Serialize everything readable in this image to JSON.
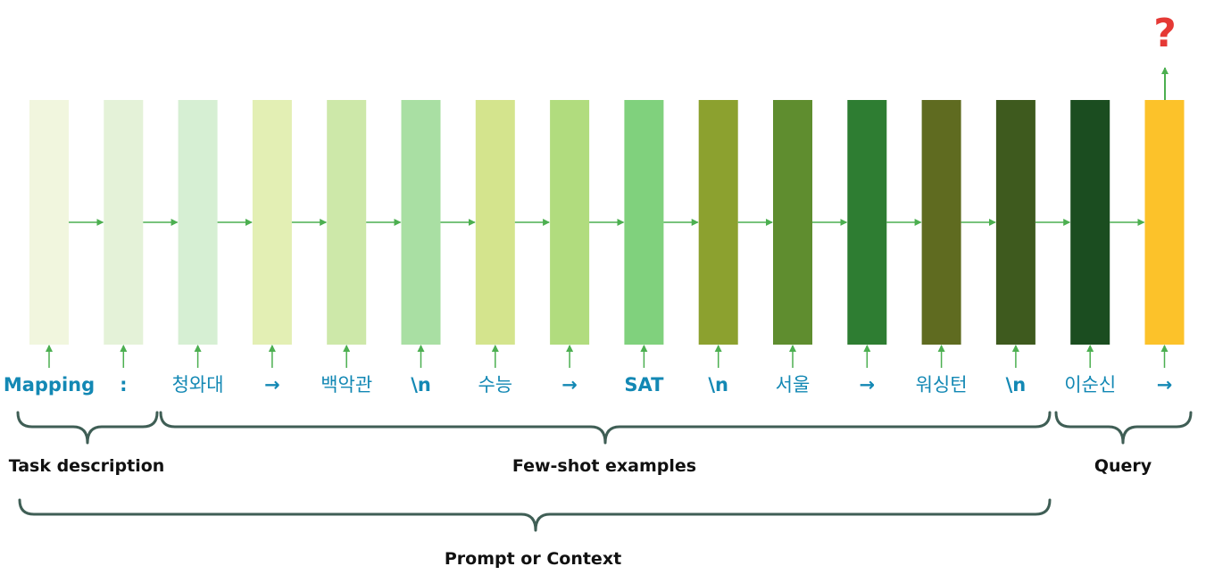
{
  "tokens": [
    {
      "label": "Mapping",
      "color": "#F1F6DE",
      "hangul": false
    },
    {
      "label": ":",
      "color": "#E4F2D8",
      "hangul": false
    },
    {
      "label": "청와대",
      "color": "#D6EFD3",
      "hangul": true
    },
    {
      "label": "→",
      "color": "#E3EFB4",
      "hangul": false
    },
    {
      "label": "백악관",
      "color": "#CDE8A9",
      "hangul": true
    },
    {
      "label": "\\n",
      "color": "#A9DFA3",
      "hangul": false
    },
    {
      "label": "수능",
      "color": "#D4E48D",
      "hangul": true
    },
    {
      "label": "→",
      "color": "#B1DC7E",
      "hangul": false
    },
    {
      "label": "SAT",
      "color": "#80D17D",
      "hangul": false
    },
    {
      "label": "\\n",
      "color": "#8CA12F",
      "hangul": false
    },
    {
      "label": "서울",
      "color": "#5F8D2F",
      "hangul": true
    },
    {
      "label": "→",
      "color": "#2E7D32",
      "hangul": false
    },
    {
      "label": "워싱턴",
      "color": "#5F6B20",
      "hangul": true
    },
    {
      "label": "\\n",
      "color": "#3E5A1E",
      "hangul": false
    },
    {
      "label": "이순신",
      "color": "#1B4D20",
      "hangul": true
    },
    {
      "label": "→",
      "color": "#FCC22A",
      "hangul": false
    }
  ],
  "groups": {
    "task": "Task description",
    "fewshot": "Few-shot examples",
    "query": "Query",
    "prompt": "Prompt or Context"
  },
  "output": {
    "symbol": "?"
  },
  "colors": {
    "arrow": "#4CAF50",
    "label": "#1388B4",
    "bracket": "#3F5E55",
    "question": "#E53935"
  }
}
